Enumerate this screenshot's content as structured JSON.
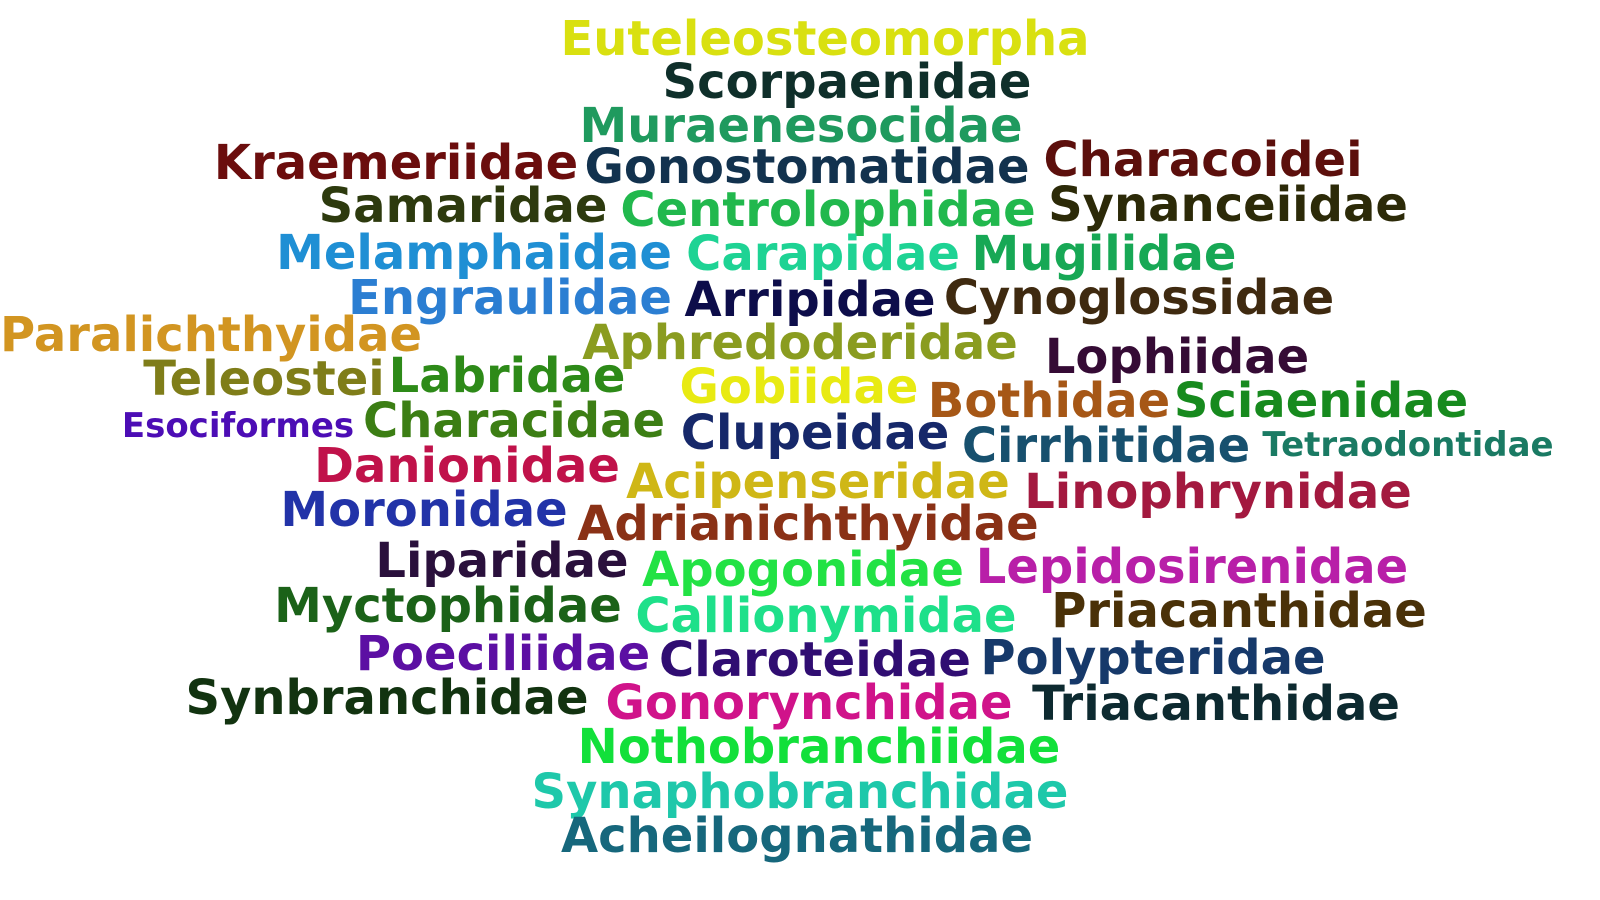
{
  "words": [
    {
      "text": "Euteleosteomorpha",
      "color": "#d9e010"
    },
    {
      "text": "Scorpaenidae",
      "color": "#0f2f2a"
    },
    {
      "text": "Muraenesocidae",
      "color": "#1f9a5e"
    },
    {
      "text": "Kraemeriidae",
      "color": "#6b0d0d"
    },
    {
      "text": "Gonostomatidae",
      "color": "#12324e"
    },
    {
      "text": "Characoidei",
      "color": "#5c0f0c"
    },
    {
      "text": "Samaridae",
      "color": "#2d3a0e"
    },
    {
      "text": "Centrolophidae",
      "color": "#21b84d"
    },
    {
      "text": "Synanceiidae",
      "color": "#2c2a08"
    },
    {
      "text": "Melamphaidae",
      "color": "#1f8fd4"
    },
    {
      "text": "Carapidae",
      "color": "#1ed394"
    },
    {
      "text": "Mugilidae",
      "color": "#17a855"
    },
    {
      "text": "Engraulidae",
      "color": "#2b7ed2"
    },
    {
      "text": "Arripidae",
      "color": "#0d0d4a"
    },
    {
      "text": "Cynoglossidae",
      "color": "#3f2a10"
    },
    {
      "text": "Paralichthyidae",
      "color": "#d29521"
    },
    {
      "text": "Aphredoderidae",
      "color": "#8a9c20"
    },
    {
      "text": "Lophiidae",
      "color": "#350b35"
    },
    {
      "text": "Teleostei",
      "color": "#7f7d19"
    },
    {
      "text": "Labridae",
      "color": "#2d8a18"
    },
    {
      "text": "Gobiidae",
      "color": "#e8ea12"
    },
    {
      "text": "Bothidae",
      "color": "#a65716"
    },
    {
      "text": "Sciaenidae",
      "color": "#178a1e"
    },
    {
      "text": "Esociformes",
      "color": "#4c0db5"
    },
    {
      "text": "Characidae",
      "color": "#3c7e14"
    },
    {
      "text": "Clupeidae",
      "color": "#16286a"
    },
    {
      "text": "Cirrhitidae",
      "color": "#17506e"
    },
    {
      "text": "Tetraodontidae",
      "color": "#1a7a63"
    },
    {
      "text": "Danionidae",
      "color": "#c0124a"
    },
    {
      "text": "Acipenseridae",
      "color": "#cfb716"
    },
    {
      "text": "Linophrynidae",
      "color": "#a3193f"
    },
    {
      "text": "Moronidae",
      "color": "#2233a8"
    },
    {
      "text": "Adrianichthyidae",
      "color": "#8a3116"
    },
    {
      "text": "Liparidae",
      "color": "#2a103c"
    },
    {
      "text": "Apogonidae",
      "color": "#22e244"
    },
    {
      "text": "Lepidosirenidae",
      "color": "#b81fa8"
    },
    {
      "text": "Myctophidae",
      "color": "#1b6218"
    },
    {
      "text": "Callionymidae",
      "color": "#1ee08a"
    },
    {
      "text": "Priacanthidae",
      "color": "#4a3108"
    },
    {
      "text": "Poeciliidae",
      "color": "#5c0fa3"
    },
    {
      "text": "Claroteidae",
      "color": "#300d72"
    },
    {
      "text": "Polypteridae",
      "color": "#16396a"
    },
    {
      "text": "Synbranchidae",
      "color": "#123310"
    },
    {
      "text": "Gonorynchidae",
      "color": "#d0138a"
    },
    {
      "text": "Triacanthidae",
      "color": "#0d2a30"
    },
    {
      "text": "Nothobranchiidae",
      "color": "#12e03a"
    },
    {
      "text": "Synaphobranchidae",
      "color": "#1ec8aa"
    },
    {
      "text": "Acheilognathidae",
      "color": "#16677c"
    }
  ]
}
